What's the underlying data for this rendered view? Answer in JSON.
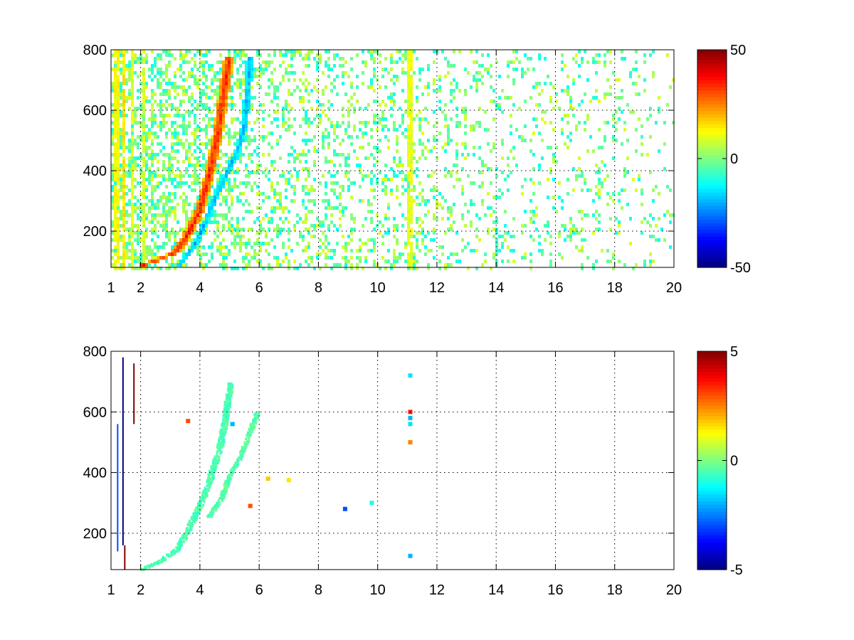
{
  "colormap": "jet",
  "chart_data": [
    {
      "type": "heatmap",
      "title": "",
      "xlabel": "",
      "ylabel": "",
      "xlim": [
        1,
        20
      ],
      "ylim": [
        80,
        800
      ],
      "grid": true,
      "x_ticks": [
        1,
        2,
        4,
        6,
        8,
        10,
        12,
        14,
        16,
        18,
        20
      ],
      "x_tick_labels": [
        "1",
        "2",
        "4",
        "6",
        "8",
        "10",
        "12",
        "14",
        "16",
        "18",
        "20"
      ],
      "y_ticks": [
        200,
        400,
        600,
        800
      ],
      "y_tick_labels": [
        "200",
        "400",
        "600",
        "800"
      ],
      "colorbar": {
        "min": -50,
        "max": 50,
        "ticks": [
          50,
          0,
          -50
        ],
        "tick_labels": [
          "50",
          "0",
          "-50"
        ]
      },
      "features": {
        "ridges": [
          {
            "points": [
              [
                2.0,
                85
              ],
              [
                2.6,
                105
              ],
              [
                3.2,
                130
              ],
              [
                3.6,
                190
              ],
              [
                4.0,
                270
              ],
              [
                4.3,
                380
              ],
              [
                4.6,
                520
              ],
              [
                4.8,
                650
              ],
              [
                5.0,
                780
              ]
            ],
            "value": 35,
            "width": 0.18
          },
          {
            "points": [
              [
                3.3,
                85
              ],
              [
                3.8,
                150
              ],
              [
                4.2,
                230
              ],
              [
                4.6,
                330
              ],
              [
                5.0,
                410
              ],
              [
                5.3,
                470
              ],
              [
                5.5,
                550
              ],
              [
                5.6,
                650
              ],
              [
                5.7,
                780
              ]
            ],
            "value": -20,
            "width": 0.12
          }
        ],
        "stripes": [
          {
            "x": 1.2,
            "value": 12
          },
          {
            "x": 1.45,
            "value": 15
          },
          {
            "x": 1.7,
            "value": 10
          },
          {
            "x": 2.1,
            "value": 9
          },
          {
            "x": 11.1,
            "value": 10
          },
          {
            "x": 14.0,
            "value": -8,
            "yrange": [
              80,
              240
            ]
          }
        ],
        "scatter_density": [
          [
            1,
            0.85
          ],
          [
            4,
            0.75
          ],
          [
            6,
            0.5
          ],
          [
            8,
            0.42
          ],
          [
            10,
            0.45
          ],
          [
            12,
            0.35
          ],
          [
            14,
            0.25
          ],
          [
            20,
            0.18
          ]
        ],
        "noise_value_range": [
          -12,
          10
        ]
      }
    },
    {
      "type": "heatmap",
      "title": "",
      "xlabel": "",
      "ylabel": "",
      "xlim": [
        1,
        20
      ],
      "ylim": [
        80,
        800
      ],
      "grid": true,
      "x_ticks": [
        1,
        2,
        4,
        6,
        8,
        10,
        12,
        14,
        16,
        18,
        20
      ],
      "x_tick_labels": [
        "1",
        "2",
        "4",
        "6",
        "8",
        "10",
        "12",
        "14",
        "16",
        "18",
        "20"
      ],
      "y_ticks": [
        200,
        400,
        600,
        800
      ],
      "y_tick_labels": [
        "200",
        "400",
        "600",
        "800"
      ],
      "colorbar": {
        "min": -5,
        "max": 5,
        "ticks": [
          5,
          0,
          -5
        ],
        "tick_labels": [
          "5",
          "0",
          "-5"
        ]
      },
      "features": {
        "ridges": [
          {
            "points": [
              [
                2.0,
                85
              ],
              [
                2.6,
                110
              ],
              [
                3.2,
                150
              ],
              [
                3.6,
                220
              ],
              [
                4.0,
                300
              ],
              [
                4.3,
                380
              ],
              [
                4.6,
                470
              ],
              [
                4.8,
                560
              ],
              [
                5.0,
                700
              ]
            ],
            "value": -0.5,
            "width": 0.12
          },
          {
            "points": [
              [
                4.3,
                260
              ],
              [
                4.7,
                320
              ],
              [
                5.0,
                400
              ],
              [
                5.3,
                450
              ],
              [
                5.6,
                520
              ],
              [
                5.9,
                600
              ]
            ],
            "value": -0.4,
            "width": 0.09
          }
        ],
        "vertical_lines": [
          {
            "x": 1.38,
            "yrange": [
              160,
              780
            ],
            "value": -5
          },
          {
            "x": 1.44,
            "yrange": [
              80,
              160
            ],
            "value": 5
          },
          {
            "x": 1.75,
            "yrange": [
              560,
              760
            ],
            "value": 5
          },
          {
            "x": 1.2,
            "yrange": [
              140,
              560
            ],
            "value": -3
          }
        ],
        "spots": [
          {
            "x": 11.1,
            "y": 720,
            "value": -1.5
          },
          {
            "x": 11.1,
            "y": 600,
            "value": 3.5
          },
          {
            "x": 11.1,
            "y": 580,
            "value": -2
          },
          {
            "x": 11.1,
            "y": 560,
            "value": -1.5
          },
          {
            "x": 11.1,
            "y": 500,
            "value": 2.5
          },
          {
            "x": 11.1,
            "y": 125,
            "value": -2
          },
          {
            "x": 8.9,
            "y": 280,
            "value": -3
          },
          {
            "x": 9.8,
            "y": 300,
            "value": -1
          },
          {
            "x": 6.3,
            "y": 380,
            "value": 1.8
          },
          {
            "x": 5.7,
            "y": 290,
            "value": 3
          },
          {
            "x": 3.6,
            "y": 570,
            "value": 3
          },
          {
            "x": 5.1,
            "y": 560,
            "value": -2
          },
          {
            "x": 7.0,
            "y": 375,
            "value": 1.5
          }
        ]
      }
    }
  ]
}
